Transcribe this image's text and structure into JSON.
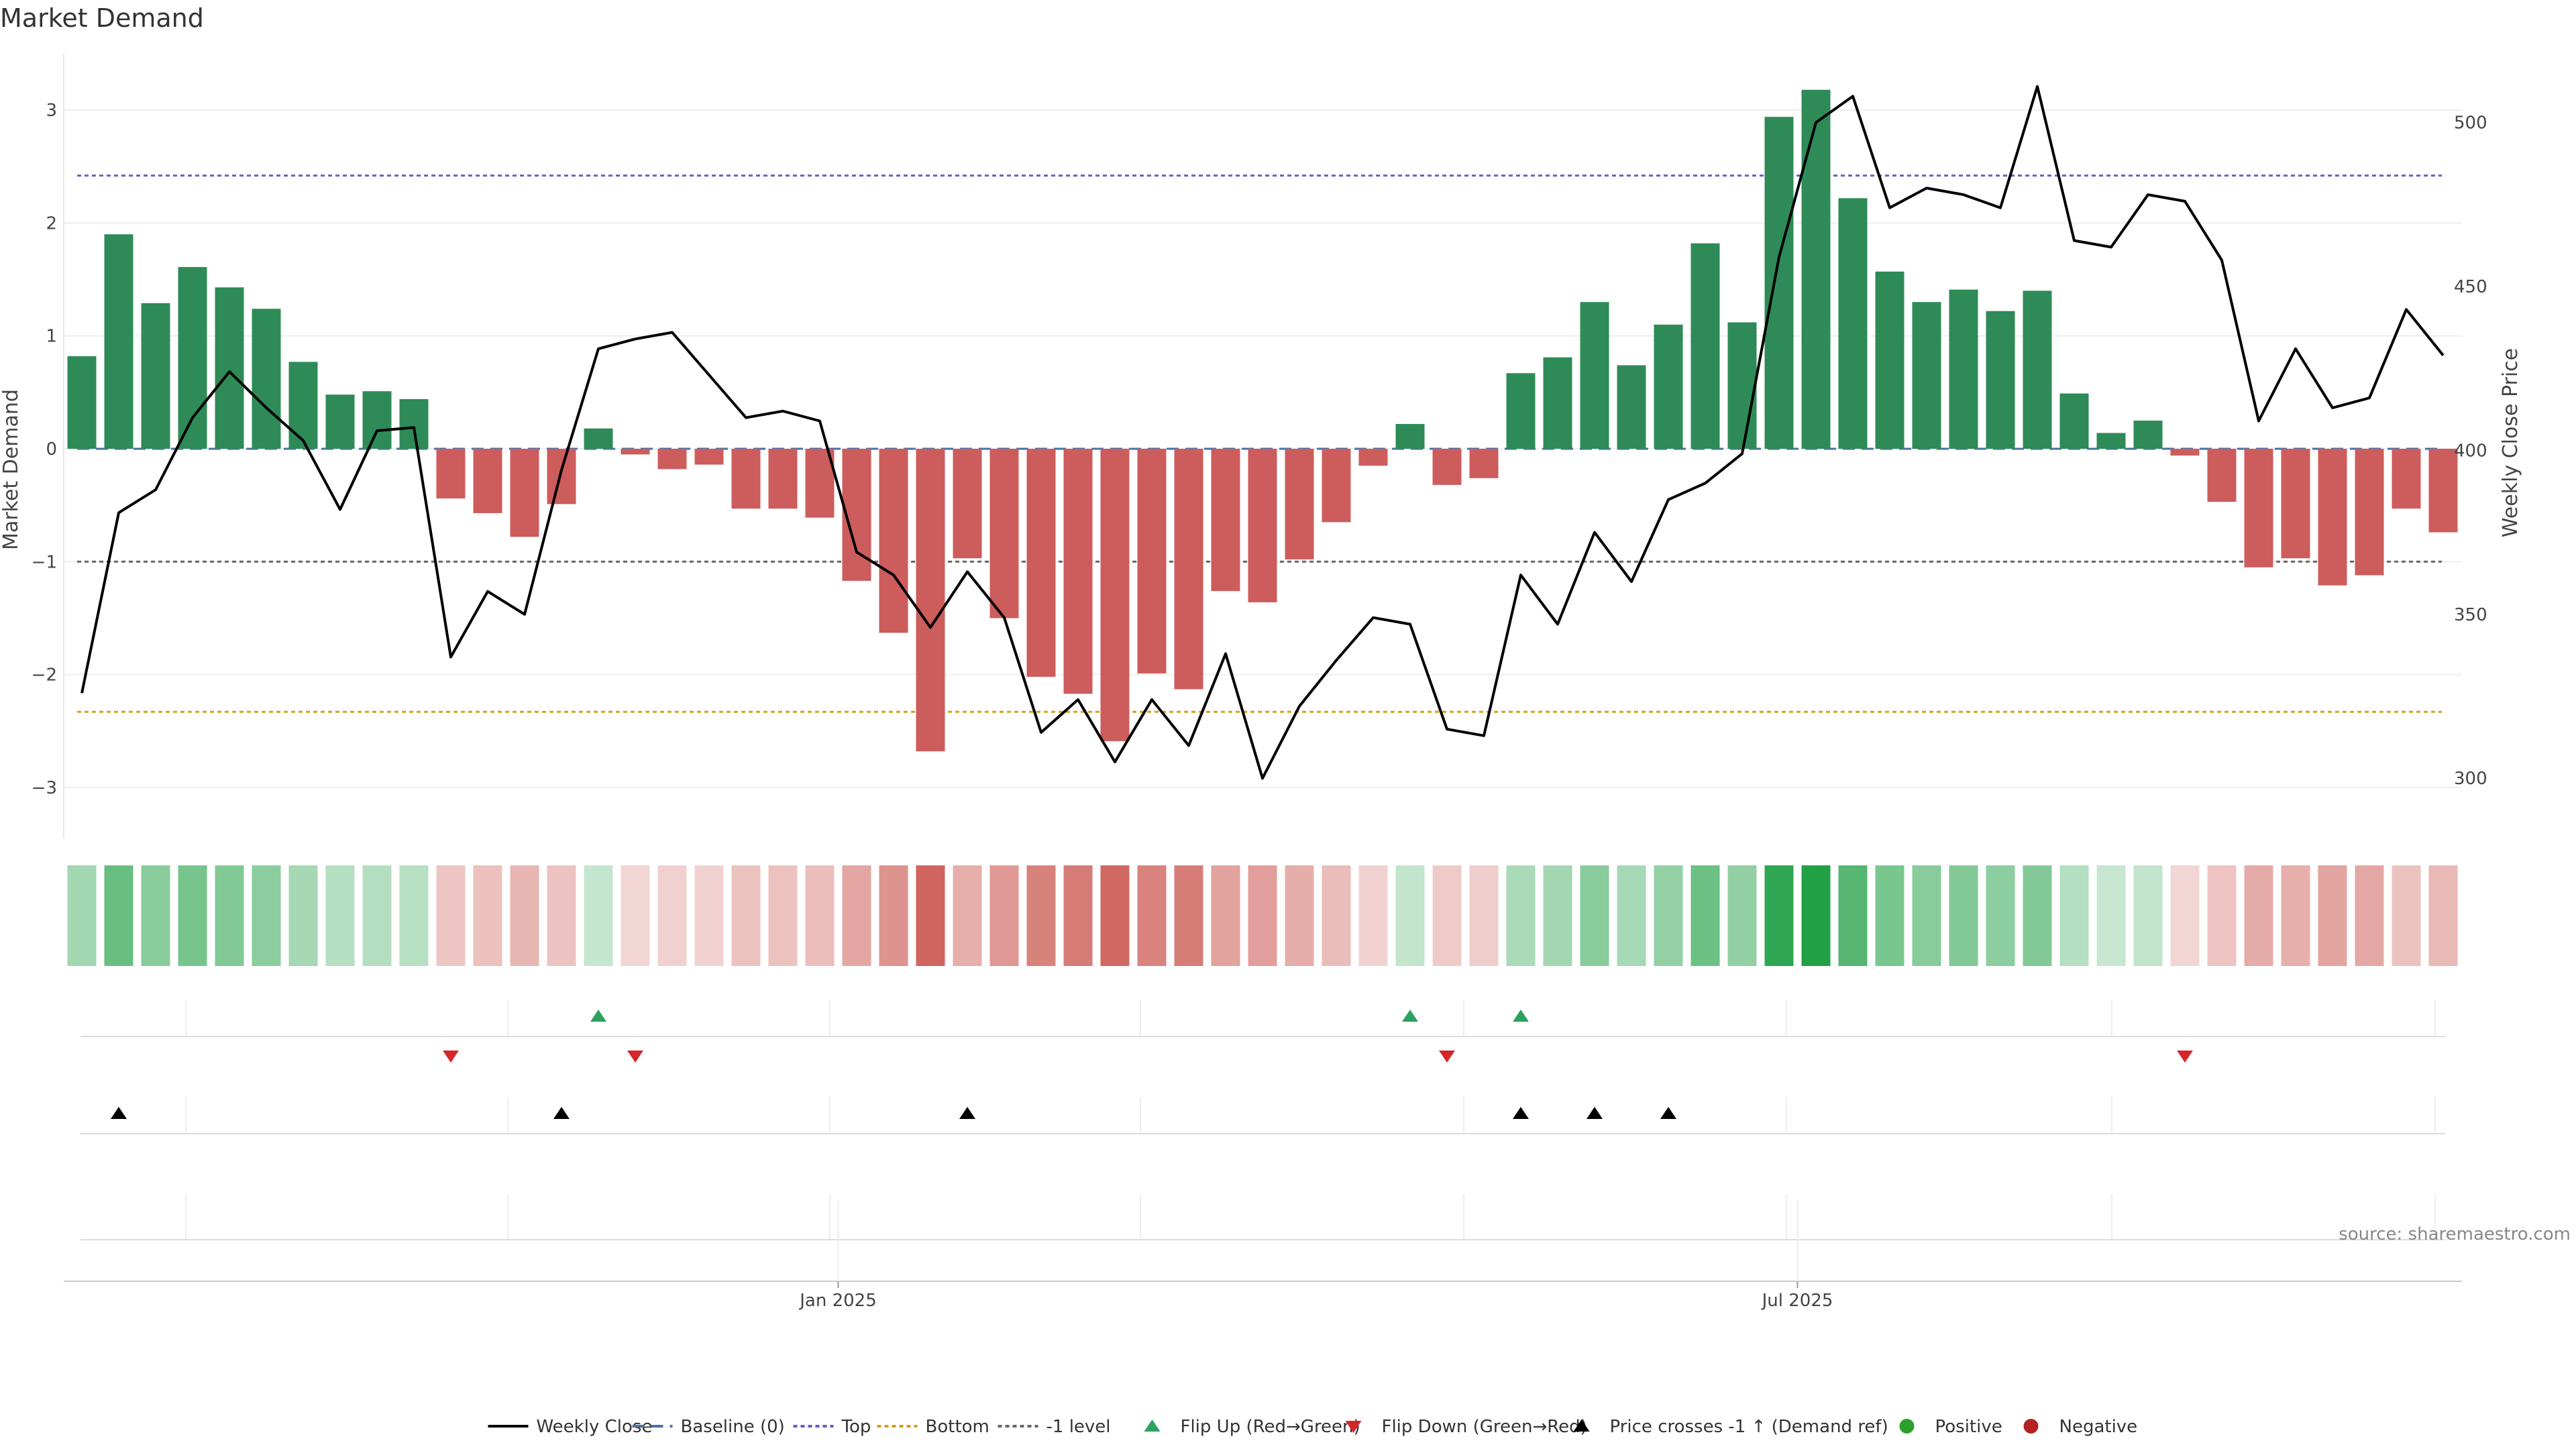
{
  "chart_data": {
    "type": "bar",
    "title": "Market Demand",
    "ylabel": "Market Demand",
    "y2label": "Weekly Close Price",
    "source": "source: sharemaestro.com",
    "ylim": [
      -3.5,
      3.5
    ],
    "y2lim": [
      280,
      521
    ],
    "yticks": [
      3,
      2,
      1,
      0,
      -1,
      -2,
      -3
    ],
    "ytick_labels": [
      "3",
      "2",
      "1",
      "0",
      "−1",
      "−2",
      "−3"
    ],
    "y2ticks": [
      500,
      450,
      400,
      350,
      300
    ],
    "y2tick_labels": [
      "500",
      "450",
      "400",
      "350",
      "300"
    ],
    "xtick_labels": [
      "Jan 2025",
      "Jul 2025"
    ],
    "xtick_index": [
      20.5,
      46.5
    ],
    "reference_lines": {
      "top": 2.42,
      "bottom": -2.33,
      "minus_one_level": -1.0,
      "baseline": 0
    },
    "colors": {
      "positive": "#2e8b57",
      "negative": "#cd5c5c",
      "close_line": "#000000",
      "top_line": "#6a5acd",
      "bottom_line": "#d4a017",
      "baseline": "#4a6fa5",
      "level_line": "#666666",
      "flip_up": "#2ca25f",
      "flip_down": "#d62728",
      "cross": "#000000",
      "positive_dot": "#2ca02c",
      "negative_dot": "#b22222"
    },
    "series": [
      {
        "name": "Market Demand",
        "values": [
          0.82,
          1.9,
          1.29,
          1.61,
          1.43,
          1.24,
          0.77,
          0.48,
          0.51,
          0.44,
          -0.44,
          -0.57,
          -0.78,
          -0.49,
          0.18,
          -0.05,
          -0.18,
          -0.14,
          -0.53,
          -0.53,
          -0.61,
          -1.17,
          -1.63,
          -2.68,
          -0.97,
          -1.5,
          -2.02,
          -2.17,
          -2.59,
          -1.99,
          -2.13,
          -1.26,
          -1.36,
          -0.98,
          -0.65,
          -0.15,
          0.22,
          -0.32,
          -0.26,
          0.67,
          0.81,
          1.3,
          0.74,
          1.1,
          1.82,
          1.12,
          2.94,
          3.18,
          2.22,
          1.57,
          1.3,
          1.41,
          1.22,
          1.4,
          0.49,
          0.14,
          0.25,
          -0.06,
          -0.47,
          -1.05,
          -0.97,
          -1.21,
          -1.12,
          -0.53,
          -0.74
        ]
      },
      {
        "name": "Weekly Close",
        "values": [
          326,
          381,
          388,
          410,
          424,
          413,
          403,
          382,
          406,
          407,
          337,
          357,
          350,
          394,
          431,
          434,
          436,
          423,
          410,
          412,
          409,
          369,
          362,
          346,
          363,
          349,
          314,
          324,
          305,
          324,
          310,
          338,
          300,
          322,
          336,
          349,
          347,
          315,
          313,
          362,
          347,
          375,
          360,
          385,
          390,
          399,
          459,
          500,
          508,
          474,
          480,
          478,
          474,
          511,
          464,
          462,
          478,
          476,
          458,
          409,
          431,
          413,
          416,
          443,
          429
        ]
      }
    ],
    "markers": {
      "flip_up_index": [
        14,
        36,
        39
      ],
      "flip_down_index": [
        10,
        15,
        37,
        57
      ],
      "price_cross_index": [
        1,
        13,
        24,
        39,
        41,
        43
      ]
    },
    "legend": [
      {
        "key": "close",
        "label": "Weekly Close"
      },
      {
        "key": "baseline",
        "label": "Baseline (0)"
      },
      {
        "key": "top",
        "label": "Top"
      },
      {
        "key": "bottom",
        "label": "Bottom"
      },
      {
        "key": "level",
        "label": "-1 level"
      },
      {
        "key": "flip_up",
        "label": "Flip Up (Red→Green)"
      },
      {
        "key": "flip_down",
        "label": "Flip Down (Green→Red)"
      },
      {
        "key": "cross",
        "label": "Price crosses -1 ↑ (Demand ref)"
      },
      {
        "key": "positive",
        "label": "Positive"
      },
      {
        "key": "negative",
        "label": "Negative"
      }
    ],
    "legend_position": "bottom-center"
  }
}
